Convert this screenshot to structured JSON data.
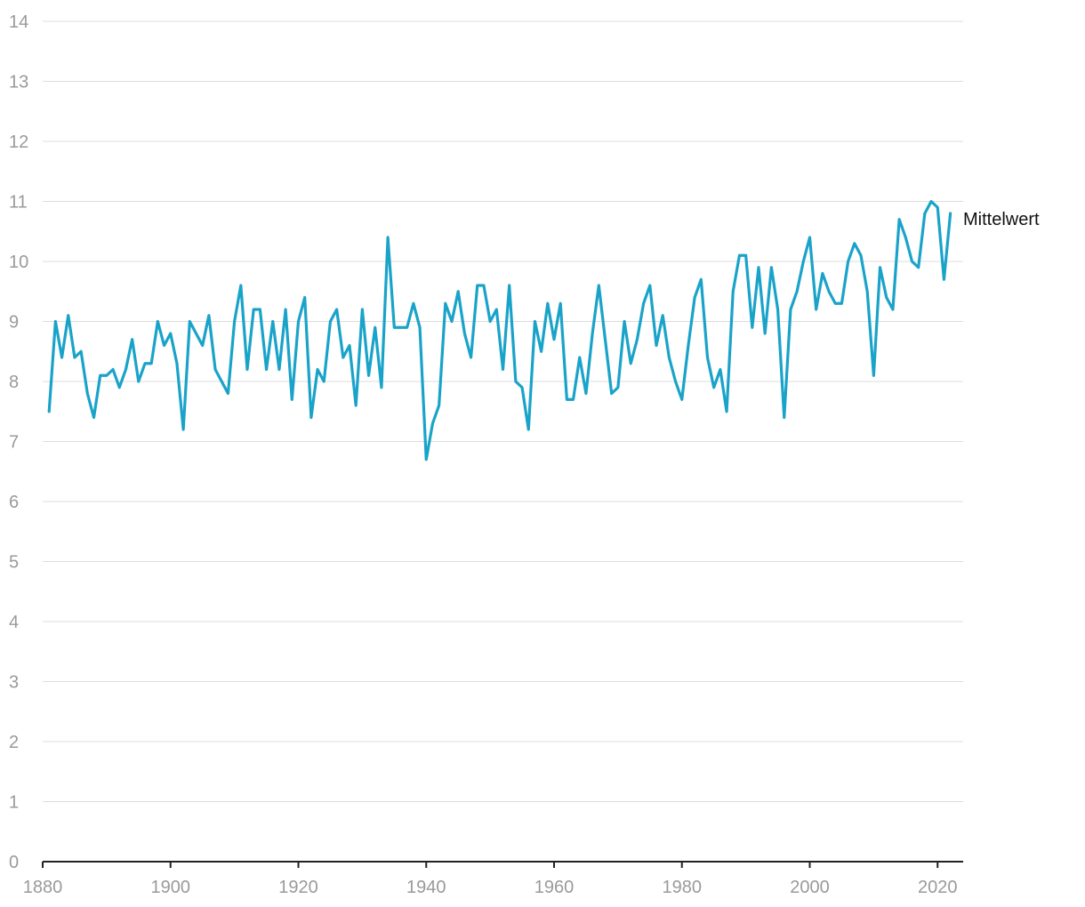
{
  "chart_data": {
    "type": "line",
    "title": "",
    "xlabel": "",
    "ylabel": "",
    "xlim": [
      1880,
      2024
    ],
    "ylim": [
      0,
      14
    ],
    "grid": true,
    "x_ticks": [
      1880,
      1900,
      1920,
      1940,
      1960,
      1980,
      2000,
      2020
    ],
    "y_ticks": [
      0,
      1,
      2,
      3,
      4,
      5,
      6,
      7,
      8,
      9,
      10,
      11,
      12,
      13,
      14
    ],
    "colors": {
      "line": "#1aa3c9",
      "grid": "#dddddd",
      "axis": "#222222",
      "tick_text": "#9a9a9a",
      "label_text": "#111111"
    },
    "series": [
      {
        "name": "Mittelwert",
        "x": [
          1881,
          1882,
          1883,
          1884,
          1885,
          1886,
          1887,
          1888,
          1889,
          1890,
          1891,
          1892,
          1893,
          1894,
          1895,
          1896,
          1897,
          1898,
          1899,
          1900,
          1901,
          1902,
          1903,
          1904,
          1905,
          1906,
          1907,
          1908,
          1909,
          1910,
          1911,
          1912,
          1913,
          1914,
          1915,
          1916,
          1917,
          1918,
          1919,
          1920,
          1921,
          1922,
          1923,
          1924,
          1925,
          1926,
          1927,
          1928,
          1929,
          1930,
          1931,
          1932,
          1933,
          1934,
          1935,
          1936,
          1937,
          1938,
          1939,
          1940,
          1941,
          1942,
          1943,
          1944,
          1945,
          1946,
          1947,
          1948,
          1949,
          1950,
          1951,
          1952,
          1953,
          1954,
          1955,
          1956,
          1957,
          1958,
          1959,
          1960,
          1961,
          1962,
          1963,
          1964,
          1965,
          1966,
          1967,
          1968,
          1969,
          1970,
          1971,
          1972,
          1973,
          1974,
          1975,
          1976,
          1977,
          1978,
          1979,
          1980,
          1981,
          1982,
          1983,
          1984,
          1985,
          1986,
          1987,
          1988,
          1989,
          1990,
          1991,
          1992,
          1993,
          1994,
          1995,
          1996,
          1997,
          1998,
          1999,
          2000,
          2001,
          2002,
          2003,
          2004,
          2005,
          2006,
          2007,
          2008,
          2009,
          2010,
          2011,
          2012,
          2013,
          2014,
          2015,
          2016,
          2017,
          2018,
          2019,
          2020,
          2021,
          2022
        ],
        "values": [
          7.5,
          9.0,
          8.4,
          9.1,
          8.4,
          8.5,
          7.8,
          7.4,
          8.1,
          8.1,
          8.2,
          7.9,
          8.2,
          8.7,
          8.0,
          8.3,
          8.3,
          9.0,
          8.6,
          8.8,
          8.3,
          7.2,
          9.0,
          8.8,
          8.6,
          9.1,
          8.2,
          8.0,
          7.8,
          9.0,
          9.6,
          8.2,
          9.2,
          9.2,
          8.2,
          9.0,
          8.2,
          9.2,
          7.7,
          9.0,
          9.4,
          7.4,
          8.2,
          8.0,
          9.0,
          9.2,
          8.4,
          8.6,
          7.6,
          9.2,
          8.1,
          8.9,
          7.9,
          10.4,
          8.9,
          8.9,
          8.9,
          9.3,
          8.9,
          6.7,
          7.3,
          7.6,
          9.3,
          9.0,
          9.5,
          8.8,
          8.4,
          9.6,
          9.6,
          9.0,
          9.2,
          8.2,
          9.6,
          8.0,
          7.9,
          7.2,
          9.0,
          8.5,
          9.3,
          8.7,
          9.3,
          7.7,
          7.7,
          8.4,
          7.8,
          8.8,
          9.6,
          8.7,
          7.8,
          7.9,
          9.0,
          8.3,
          8.7,
          9.3,
          9.6,
          8.6,
          9.1,
          8.4,
          8.0,
          7.7,
          8.6,
          9.4,
          9.7,
          8.4,
          7.9,
          8.2,
          7.5,
          9.5,
          10.1,
          10.1,
          8.9,
          9.9,
          8.8,
          9.9,
          9.2,
          7.4,
          9.2,
          9.5,
          10.0,
          10.4,
          9.2,
          9.8,
          9.5,
          9.3,
          9.3,
          10.0,
          10.3,
          10.1,
          9.5,
          8.1,
          9.9,
          9.4,
          9.2,
          10.7,
          10.4,
          10.0,
          9.9,
          10.8,
          11.0,
          10.9,
          9.7,
          10.8
        ]
      }
    ]
  }
}
